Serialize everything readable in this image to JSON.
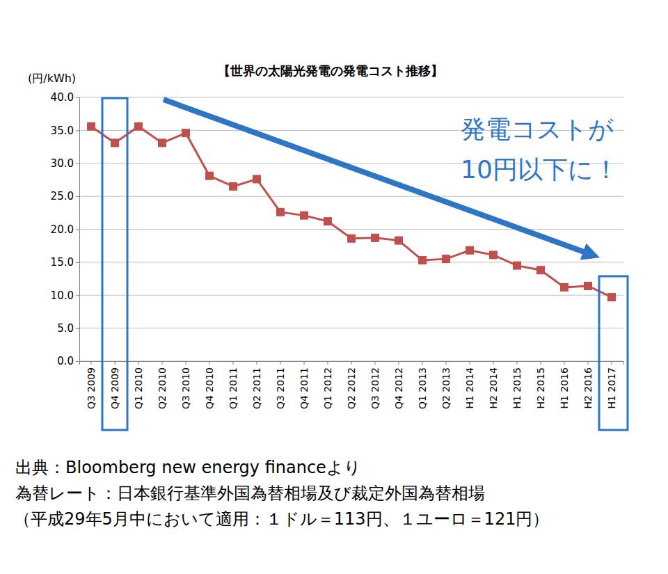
{
  "chart_data": {
    "type": "line",
    "title": "【世界の太陽光発電の発電コスト推移】",
    "y_label": "(円/kWh)",
    "annotations": [
      "発電コストが",
      "10円以下に！"
    ],
    "footnotes": [
      "出典：Bloomberg new energy financeより",
      "為替レート：日本銀行基準外国為替相場及び裁定外国為替相場",
      "（平成29年5月中において適用：１ドル＝113円、１ユーロ＝121円）"
    ],
    "categories": [
      "Q3 2009",
      "Q4 2009",
      "Q1 2010",
      "Q2 2010",
      "Q3 2010",
      "Q4 2010",
      "Q1 2011",
      "Q2 2011",
      "Q3 2011",
      "Q4 2011",
      "Q1 2012",
      "Q2 2012",
      "Q3 2012",
      "Q4 2012",
      "Q1 2013",
      "Q2 2013",
      "H1 2014",
      "H2 2014",
      "H1 2015",
      "H2 2015",
      "H1 2016",
      "H2 2016",
      "H1 2017"
    ],
    "values": [
      35.6,
      33.1,
      35.6,
      33.1,
      34.6,
      28.1,
      26.5,
      27.6,
      22.6,
      22.1,
      21.2,
      18.6,
      18.7,
      18.3,
      15.3,
      15.5,
      16.8,
      16.1,
      14.5,
      13.8,
      11.2,
      11.4,
      9.7
    ],
    "color": "#c0504d",
    "marker": "square",
    "grid": true,
    "ylim": [
      0,
      40
    ],
    "yticks": [
      {
        "value": 0,
        "label": "0.0"
      },
      {
        "value": 5,
        "label": "5.0"
      },
      {
        "value": 10,
        "label": "10.0"
      },
      {
        "value": 15,
        "label": "15.0"
      },
      {
        "value": 20,
        "label": "20.0"
      },
      {
        "value": 25,
        "label": "25.0"
      },
      {
        "value": 30,
        "label": "30.0"
      },
      {
        "value": 35,
        "label": "35.0"
      },
      {
        "value": 40,
        "label": "40.0"
      }
    ]
  }
}
